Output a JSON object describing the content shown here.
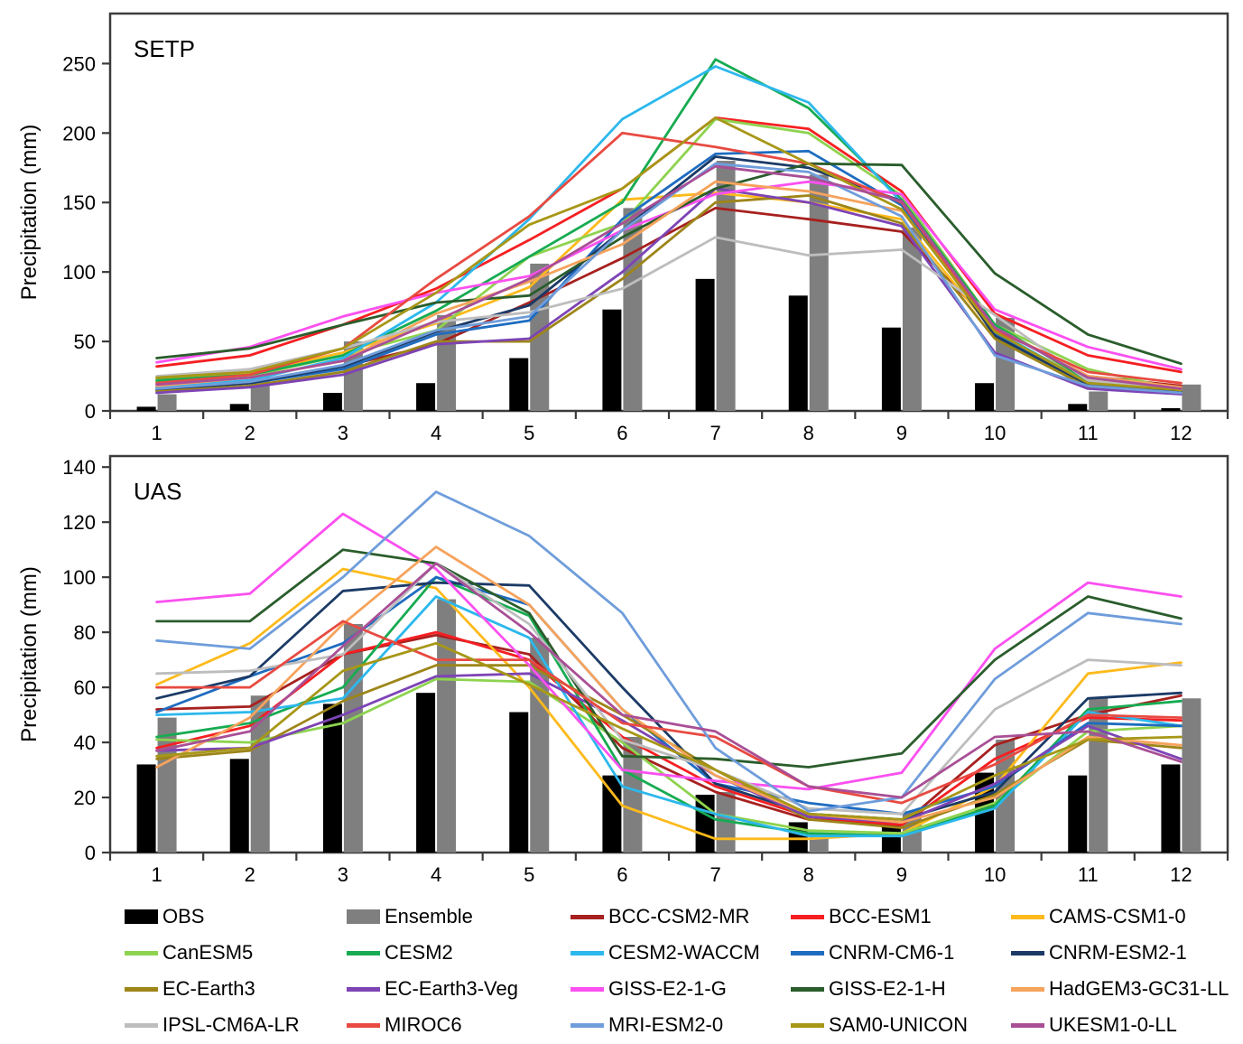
{
  "figure": {
    "panel_labels": [
      "SETP",
      "UAS"
    ],
    "y_axis_title": "Precipitation (mm)",
    "x_categories": [
      "1",
      "2",
      "3",
      "4",
      "5",
      "6",
      "7",
      "8",
      "9",
      "10",
      "11",
      "12"
    ]
  },
  "chart_data": [
    {
      "type": "bar+line combo",
      "panel_label": "SETP",
      "ylabel": "Precipitation (mm)",
      "ylim": [
        0,
        286
      ],
      "yticks": [
        0,
        50,
        100,
        150,
        200,
        250
      ],
      "categories": [
        1,
        2,
        3,
        4,
        5,
        6,
        7,
        8,
        9,
        10,
        11,
        12
      ],
      "bar_series": [
        {
          "name": "OBS",
          "color": "#000000",
          "values": [
            3,
            5,
            13,
            20,
            38,
            73,
            95,
            83,
            60,
            20,
            5,
            2
          ]
        },
        {
          "name": "Ensemble",
          "color": "#7f7f7f",
          "values": [
            12,
            29,
            50,
            69,
            106,
            146,
            180,
            170,
            132,
            67,
            14,
            19
          ]
        }
      ],
      "line_series": [
        {
          "name": "BCC-CSM2-MR",
          "color": "#a6211f",
          "values": [
            17,
            21,
            32,
            48,
            78,
            110,
            146,
            138,
            129,
            60,
            25,
            18
          ]
        },
        {
          "name": "BCC-ESM1",
          "color": "#f51f22",
          "values": [
            32,
            40,
            62,
            88,
            123,
            160,
            211,
            203,
            158,
            70,
            40,
            28
          ]
        },
        {
          "name": "CAMS-CSM1-0",
          "color": "#fdbа1c",
          "values": [
            23,
            27,
            42,
            63,
            89,
            152,
            157,
            150,
            138,
            56,
            22,
            16
          ]
        },
        {
          "name": "CanESM5",
          "color": "#8ed34f",
          "values": [
            21,
            25,
            40,
            58,
            111,
            135,
            210,
            200,
            155,
            62,
            30,
            15
          ]
        },
        {
          "name": "CESM2",
          "color": "#17ab52",
          "values": [
            22,
            26,
            40,
            72,
            111,
            150,
            253,
            218,
            152,
            62,
            22,
            14
          ]
        },
        {
          "name": "CESM2-WACCM",
          "color": "#2cb8ec",
          "values": [
            17,
            22,
            38,
            78,
            138,
            210,
            248,
            222,
            150,
            58,
            20,
            14
          ]
        },
        {
          "name": "CNRM-CM6-1",
          "color": "#1e6cc0",
          "values": [
            15,
            20,
            30,
            55,
            65,
            138,
            185,
            187,
            148,
            55,
            20,
            15
          ]
        },
        {
          "name": "CNRM-ESM2-1",
          "color": "#1b3a66",
          "values": [
            15,
            20,
            32,
            57,
            76,
            130,
            183,
            175,
            151,
            54,
            19,
            14
          ]
        },
        {
          "name": "EC-Earth3",
          "color": "#9d8519",
          "values": [
            14,
            18,
            28,
            50,
            50,
            95,
            150,
            155,
            135,
            52,
            17,
            13
          ]
        },
        {
          "name": "EC-Earth3-Veg",
          "color": "#7d44b5",
          "values": [
            13,
            17,
            26,
            48,
            52,
            100,
            160,
            150,
            133,
            42,
            16,
            12
          ]
        },
        {
          "name": "GISS-E2-1-G",
          "color": "#fb50f0",
          "values": [
            35,
            46,
            68,
            85,
            97,
            130,
            156,
            165,
            156,
            73,
            46,
            30
          ]
        },
        {
          "name": "GISS-E2-1-H",
          "color": "#2a5d2c",
          "values": [
            38,
            45,
            62,
            78,
            83,
            125,
            160,
            178,
            177,
            99,
            55,
            34
          ]
        },
        {
          "name": "HadGEM3-GC31-LL",
          "color": "#f6a35c",
          "values": [
            18,
            24,
            36,
            70,
            93,
            120,
            165,
            158,
            144,
            60,
            25,
            17
          ]
        },
        {
          "name": "IPSL-CM6A-LR",
          "color": "#bdbdbd",
          "values": [
            25,
            30,
            45,
            64,
            71,
            88,
            125,
            112,
            116,
            69,
            22,
            15
          ]
        },
        {
          "name": "MIROC6",
          "color": "#e84a41",
          "values": [
            20,
            26,
            45,
            95,
            140,
            200,
            190,
            178,
            150,
            58,
            28,
            20
          ]
        },
        {
          "name": "MRI-ESM2-0",
          "color": "#6f9ddb",
          "values": [
            16,
            21,
            33,
            58,
            68,
            130,
            178,
            172,
            140,
            40,
            18,
            13
          ]
        },
        {
          "name": "SAM0-UNICON",
          "color": "#a79717",
          "values": [
            24,
            28,
            45,
            85,
            134,
            160,
            211,
            178,
            145,
            57,
            20,
            15
          ]
        },
        {
          "name": "UKESM1-0-LL",
          "color": "#a94f96",
          "values": [
            19,
            24,
            36,
            65,
            95,
            135,
            176,
            168,
            151,
            60,
            24,
            16
          ]
        }
      ]
    },
    {
      "type": "bar+line combo",
      "panel_label": "UAS",
      "ylabel": "Precipitation (mm)",
      "ylim": [
        0,
        144
      ],
      "yticks": [
        0,
        20,
        40,
        60,
        80,
        100,
        120,
        140
      ],
      "categories": [
        1,
        2,
        3,
        4,
        5,
        6,
        7,
        8,
        9,
        10,
        11,
        12
      ],
      "bar_series": [
        {
          "name": "OBS",
          "color": "#000000",
          "values": [
            32,
            34,
            54,
            58,
            51,
            28,
            21,
            11,
            10,
            29,
            28,
            32
          ]
        },
        {
          "name": "Ensemble",
          "color": "#7f7f7f",
          "values": [
            49,
            57,
            83,
            92,
            78,
            42,
            22,
            7,
            15,
            41,
            56,
            56
          ]
        }
      ],
      "line_series": [
        {
          "name": "BCC-CSM2-MR",
          "color": "#a6211f",
          "values": [
            52,
            53,
            72,
            79,
            72,
            38,
            22,
            12,
            10,
            39,
            50,
            57
          ]
        },
        {
          "name": "BCC-ESM1",
          "color": "#f51f22",
          "values": [
            38,
            46,
            72,
            80,
            70,
            42,
            24,
            13,
            10,
            34,
            49,
            48
          ]
        },
        {
          "name": "CAMS-CSM1-0",
          "color": "#fdbа1c",
          "values": [
            61,
            76,
            103,
            96,
            60,
            17,
            5,
            5,
            7,
            24,
            65,
            69
          ]
        },
        {
          "name": "CanESM5",
          "color": "#8ed34f",
          "values": [
            41,
            40,
            47,
            63,
            62,
            40,
            14,
            8,
            7,
            18,
            44,
            46
          ]
        },
        {
          "name": "CESM2",
          "color": "#17ab52",
          "values": [
            42,
            47,
            60,
            100,
            86,
            30,
            12,
            7,
            6,
            17,
            52,
            55
          ]
        },
        {
          "name": "CESM2-WACCM",
          "color": "#2cb8ec",
          "values": [
            50,
            51,
            56,
            93,
            78,
            24,
            14,
            6,
            6,
            16,
            51,
            46
          ]
        },
        {
          "name": "CNRM-CM6-1",
          "color": "#1e6cc0",
          "values": [
            51,
            64,
            76,
            100,
            90,
            52,
            25,
            18,
            14,
            24,
            47,
            46
          ]
        },
        {
          "name": "CNRM-ESM2-1",
          "color": "#1b3a66",
          "values": [
            56,
            64,
            95,
            98,
            97,
            60,
            25,
            14,
            12,
            22,
            56,
            58
          ]
        },
        {
          "name": "EC-Earth3",
          "color": "#9d8519",
          "values": [
            34,
            37,
            55,
            68,
            68,
            50,
            30,
            12,
            9,
            21,
            41,
            38
          ]
        },
        {
          "name": "EC-Earth3-Veg",
          "color": "#7d44b5",
          "values": [
            37,
            38,
            50,
            64,
            65,
            48,
            28,
            13,
            11,
            25,
            46,
            34
          ]
        },
        {
          "name": "GISS-E2-1-G",
          "color": "#fb50f0",
          "values": [
            91,
            94,
            123,
            103,
            68,
            30,
            26,
            23,
            29,
            74,
            98,
            93
          ]
        },
        {
          "name": "GISS-E2-1-H",
          "color": "#2a5d2c",
          "values": [
            84,
            84,
            110,
            105,
            87,
            35,
            34,
            31,
            36,
            70,
            93,
            85
          ]
        },
        {
          "name": "HadGEM3-GC31-LL",
          "color": "#f6a35c",
          "values": [
            31,
            49,
            83,
            111,
            90,
            52,
            28,
            14,
            11,
            20,
            42,
            39
          ]
        },
        {
          "name": "IPSL-CM6A-LR",
          "color": "#bdbdbd",
          "values": [
            65,
            66,
            72,
            105,
            83,
            41,
            30,
            16,
            14,
            52,
            70,
            68
          ]
        },
        {
          "name": "MIROC6",
          "color": "#e84a41",
          "values": [
            60,
            60,
            84,
            70,
            70,
            47,
            42,
            24,
            18,
            32,
            50,
            49
          ]
        },
        {
          "name": "MRI-ESM2-0",
          "color": "#6f9ddb",
          "values": [
            77,
            74,
            100,
            131,
            115,
            87,
            38,
            15,
            20,
            63,
            87,
            83
          ]
        },
        {
          "name": "SAM0-UNICON",
          "color": "#a79717",
          "values": [
            35,
            38,
            66,
            76,
            61,
            45,
            30,
            14,
            12,
            28,
            41,
            42
          ]
        },
        {
          "name": "UKESM1-0-LL",
          "color": "#a94f96",
          "values": [
            37,
            44,
            75,
            105,
            80,
            50,
            44,
            24,
            20,
            42,
            44,
            33
          ]
        }
      ]
    }
  ],
  "legend": {
    "order": [
      "OBS",
      "Ensemble",
      "BCC-CSM2-MR",
      "BCC-ESM1",
      "CAMS-CSM1-0",
      "CanESM5",
      "CESM2",
      "CESM2-WACCM",
      "CNRM-CM6-1",
      "CNRM-ESM2-1",
      "EC-Earth3",
      "EC-Earth3-Veg",
      "GISS-E2-1-G",
      "GISS-E2-1-H",
      "HadGEM3-GC31-LL",
      "IPSL-CM6A-LR",
      "MIROC6",
      "MRI-ESM2-0",
      "SAM0-UNICON",
      "UKESM1-0-LL"
    ]
  }
}
